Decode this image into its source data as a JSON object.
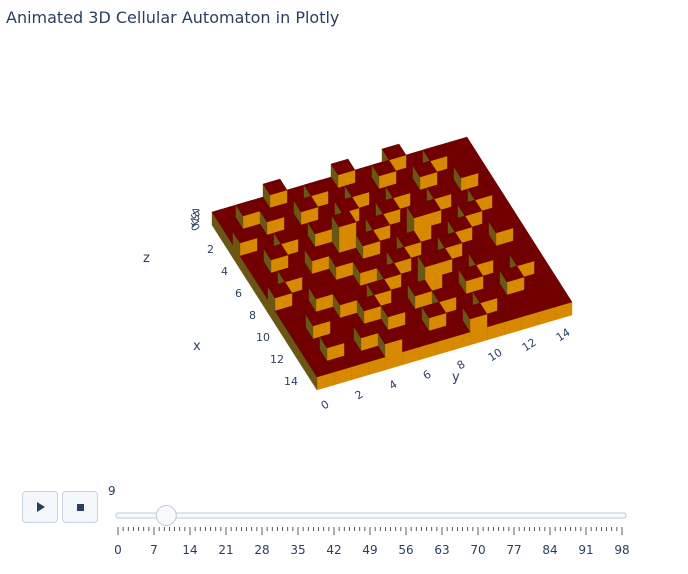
{
  "title": "Animated 3D Cellular Automaton in Plotly",
  "colors": {
    "top": "#720000",
    "side_light": "#d78a00",
    "side_dark": "#6b5614",
    "grid": "#e1e6ee",
    "plane": "#f2f5fa"
  },
  "chart_data": {
    "type": "3d-bar",
    "title": "Animated 3D Cellular Automaton in Plotly",
    "x_axis": {
      "title": "x",
      "ticks": [
        "2",
        "4",
        "6",
        "8",
        "10",
        "12",
        "14"
      ],
      "range": [
        0,
        15
      ]
    },
    "y_axis": {
      "title": "y",
      "ticks": [
        "0",
        "2",
        "4",
        "6",
        "8",
        "10",
        "12",
        "14"
      ],
      "range": [
        0,
        15
      ]
    },
    "z_axis": {
      "title": "z",
      "ticks": [
        "0",
        "1",
        "2",
        "3",
        "4"
      ],
      "range": [
        0,
        4
      ]
    },
    "grid_size": 15,
    "heights": [
      [
        1,
        1,
        1,
        2,
        1,
        1,
        1,
        2,
        1,
        1,
        2,
        1,
        1,
        1,
        1
      ],
      [
        1,
        2,
        1,
        1,
        1,
        2,
        1,
        1,
        1,
        2,
        1,
        1,
        2,
        1,
        1
      ],
      [
        1,
        1,
        2,
        1,
        2,
        1,
        1,
        2,
        1,
        1,
        1,
        2,
        1,
        1,
        1
      ],
      [
        2,
        1,
        1,
        1,
        1,
        1,
        2,
        1,
        1,
        2,
        1,
        1,
        1,
        2,
        1
      ],
      [
        1,
        1,
        2,
        1,
        2,
        1,
        1,
        1,
        2,
        1,
        1,
        2,
        1,
        1,
        1
      ],
      [
        1,
        2,
        1,
        1,
        1,
        3,
        1,
        2,
        1,
        1,
        2,
        1,
        1,
        2,
        1
      ],
      [
        1,
        1,
        1,
        2,
        1,
        1,
        2,
        1,
        1,
        3,
        1,
        1,
        2,
        1,
        1
      ],
      [
        1,
        2,
        1,
        1,
        2,
        1,
        1,
        1,
        2,
        1,
        1,
        2,
        1,
        1,
        1
      ],
      [
        2,
        1,
        1,
        1,
        1,
        2,
        1,
        2,
        1,
        1,
        2,
        1,
        1,
        2,
        1
      ],
      [
        1,
        1,
        2,
        1,
        1,
        1,
        2,
        1,
        1,
        2,
        1,
        1,
        1,
        1,
        1
      ],
      [
        1,
        1,
        1,
        2,
        1,
        2,
        1,
        1,
        3,
        1,
        1,
        2,
        1,
        1,
        1
      ],
      [
        1,
        2,
        1,
        1,
        2,
        1,
        1,
        2,
        1,
        1,
        2,
        1,
        1,
        2,
        1
      ],
      [
        1,
        1,
        1,
        1,
        1,
        2,
        1,
        1,
        2,
        1,
        1,
        1,
        2,
        1,
        1
      ],
      [
        1,
        2,
        1,
        2,
        1,
        1,
        1,
        2,
        1,
        1,
        2,
        1,
        1,
        1,
        1
      ],
      [
        1,
        1,
        1,
        1,
        2,
        1,
        1,
        1,
        1,
        2,
        1,
        1,
        1,
        1,
        1
      ]
    ]
  },
  "animation": {
    "current_frame": "9",
    "frame_value": 9,
    "frame_min": 0,
    "frame_max": 98,
    "tick_labels": [
      "0",
      "7",
      "14",
      "21",
      "28",
      "35",
      "42",
      "49",
      "56",
      "63",
      "70",
      "77",
      "84",
      "91",
      "98"
    ],
    "play_icon": "play-icon",
    "stop_icon": "stop-icon"
  }
}
